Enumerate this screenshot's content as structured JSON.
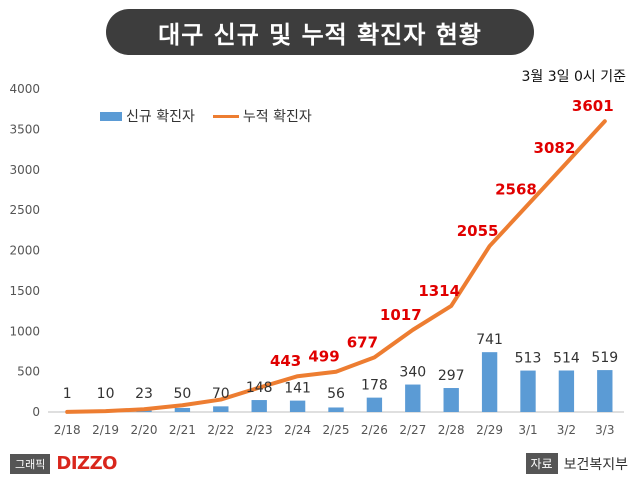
{
  "header": {
    "title": "대구 신규 및 누적 확진자 현황",
    "date_note": "3월 3일 0시 기준"
  },
  "legend": {
    "bar_label": "신규 확진자",
    "line_label": "누적 확진자"
  },
  "footer": {
    "credit_label": "그래픽",
    "brand": "DIZZO",
    "source_label": "자료",
    "source_name": "보건복지부"
  },
  "colors": {
    "bar": "#5b9bd5",
    "line": "#ed7d31",
    "line_label": "#e00000"
  },
  "chart_data": {
    "type": "bar",
    "title": "대구 신규 및 누적 확진자 현황",
    "categories": [
      "2/18",
      "2/19",
      "2/20",
      "2/21",
      "2/22",
      "2/23",
      "2/24",
      "2/25",
      "2/26",
      "2/27",
      "2/28",
      "2/29",
      "3/1",
      "3/2",
      "3/3"
    ],
    "series": [
      {
        "name": "신규 확진자",
        "type": "bar",
        "values": [
          1,
          10,
          23,
          50,
          70,
          148,
          141,
          56,
          178,
          340,
          297,
          741,
          513,
          514,
          519
        ]
      },
      {
        "name": "누적 확진자",
        "type": "line",
        "values": [
          1,
          11,
          34,
          84,
          154,
          302,
          443,
          499,
          677,
          1017,
          1314,
          2055,
          2568,
          3082,
          3601
        ]
      }
    ],
    "line_labels_shown": [
      443,
      499,
      677,
      1017,
      1314,
      2055,
      2568,
      3082,
      3601
    ],
    "yticks": [
      0,
      500,
      1000,
      1500,
      2000,
      2500,
      3000,
      3500,
      4000
    ],
    "ylim": [
      0,
      4000
    ],
    "grid": false,
    "legend_position": "top-left"
  }
}
